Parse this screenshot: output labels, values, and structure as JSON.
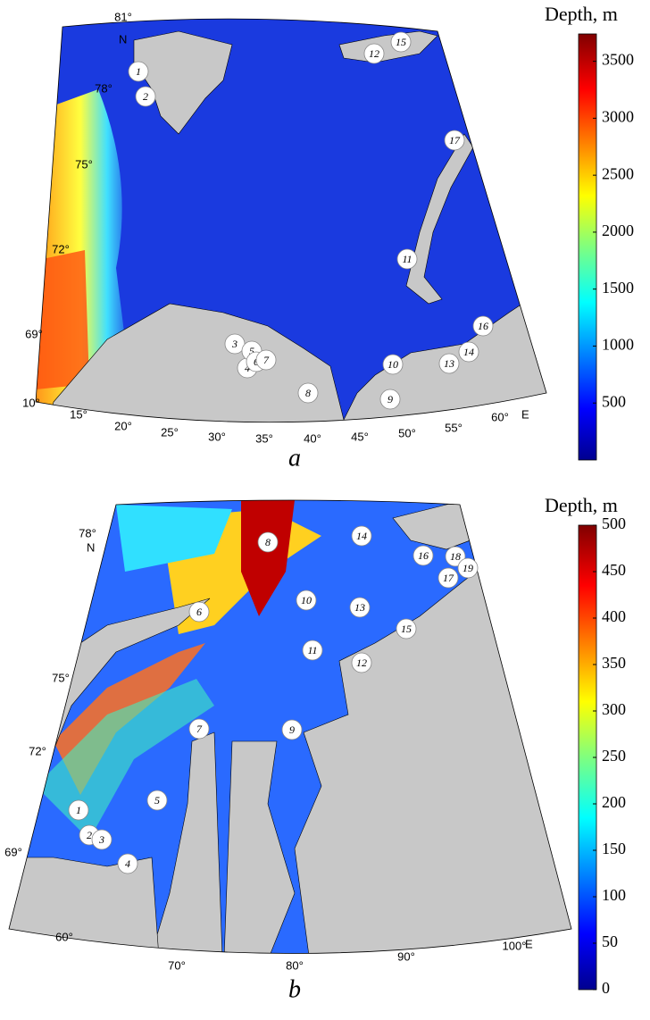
{
  "panels": [
    {
      "label": "a",
      "lat_labels": [
        "81°",
        "78°",
        "75°",
        "72°",
        "69°"
      ],
      "north": "N",
      "lon_labels": [
        "10°",
        "15°",
        "20°",
        "25°",
        "30°",
        "35°",
        "40°",
        "45°",
        "50°",
        "55°",
        "60°"
      ],
      "east": "E",
      "stations": [
        "1",
        "2",
        "3",
        "4",
        "5",
        "6",
        "7",
        "8",
        "9",
        "10",
        "11",
        "12",
        "13",
        "14",
        "15",
        "16",
        "17"
      ],
      "colorbar": {
        "title": "Depth, m",
        "range": [
          0,
          3740
        ],
        "ticks": [
          500,
          1000,
          1500,
          2000,
          2500,
          3000,
          3500
        ]
      }
    },
    {
      "label": "b",
      "lat_labels": [
        "78°",
        "75°",
        "72°",
        "69°"
      ],
      "north": "N",
      "lon_labels": [
        "60°",
        "70°",
        "80°",
        "90°",
        "100°"
      ],
      "east": "E",
      "stations": [
        "1",
        "2",
        "3",
        "4",
        "5",
        "6",
        "7",
        "8",
        "9",
        "10",
        "11",
        "12",
        "13",
        "14",
        "15",
        "16",
        "17",
        "18",
        "19"
      ],
      "colorbar": {
        "title": "Depth, m",
        "range": [
          0,
          500
        ],
        "ticks": [
          0,
          50,
          100,
          150,
          200,
          250,
          300,
          350,
          400,
          450,
          500
        ]
      }
    }
  ]
}
